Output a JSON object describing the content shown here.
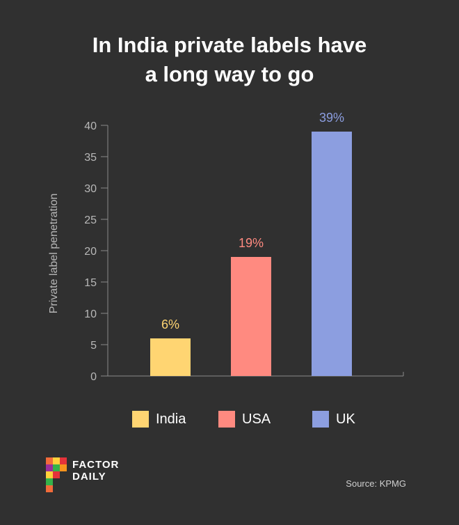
{
  "title": {
    "line1": "In India private labels have",
    "line2": "a long way to go"
  },
  "chart_data": {
    "type": "bar",
    "title": "In India private labels have a long way to go",
    "categories": [
      "India",
      "USA",
      "UK"
    ],
    "values": [
      6,
      19,
      39
    ],
    "data_labels": [
      "6%",
      "19%",
      "39%"
    ],
    "colors": [
      "#FFD572",
      "#FF8A80",
      "#8C9EE0"
    ],
    "xlabel": "",
    "ylabel": "Private label penetration",
    "ylim": [
      0,
      40
    ],
    "yticks": [
      0,
      5,
      10,
      15,
      20,
      25,
      30,
      35,
      40
    ],
    "grid": false,
    "legend": "bottom"
  },
  "legend": [
    {
      "label": "India",
      "color": "#FFD572"
    },
    {
      "label": "USA",
      "color": "#FF8A80"
    },
    {
      "label": "UK",
      "color": "#8C9EE0"
    }
  ],
  "logo": {
    "line1": "FACTOR",
    "line2": "DAILY"
  },
  "source": "Source: KPMG",
  "colors": {
    "background": "#303030",
    "axis": "#8a8a8a",
    "tick_text": "#b8b8b8"
  }
}
